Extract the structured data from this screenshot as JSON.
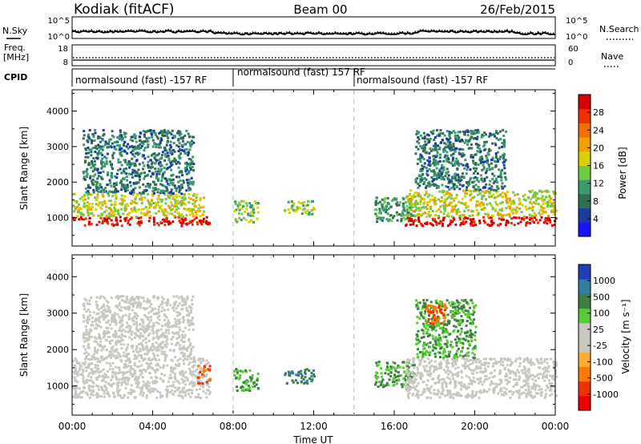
{
  "header": {
    "station": "Kodiak (fitACF)",
    "beam": "Beam 00",
    "date": "26/Feb/2015"
  },
  "summary_panels": {
    "nsky_label": "N.Sky",
    "nsearch_label": "N.Search",
    "noise_ticks": [
      "10^5",
      "10^0"
    ],
    "freq_label": "Freq.",
    "freq_unit": "[MHz]",
    "freq_ticks": [
      "18",
      "8"
    ],
    "nave_label": "Nave",
    "nave_ticks": [
      "60",
      "0"
    ],
    "cpid_label": "CPID"
  },
  "cpid_segments": [
    {
      "label": "normalsound (fast) -157 RF",
      "start_hour": 0
    },
    {
      "label": "normalsound (fast) 157 RF",
      "start_hour": 8
    },
    {
      "label": "normalsound (fast) -157 RF",
      "start_hour": 14
    }
  ],
  "colors": {
    "power_scale": [
      "#1414ff",
      "#1a3ca0",
      "#2f7050",
      "#3a9a70",
      "#6ecb46",
      "#d8d000",
      "#f0a000",
      "#f07000",
      "#f03000",
      "#d80000"
    ],
    "velocity_scale": [
      "#ee0000",
      "#ee3300",
      "#ff7a00",
      "#ffaa33",
      "#c8c8c0",
      "#c8c8c0",
      "#55cc33",
      "#3a8040",
      "#2f7fa0",
      "#1d3ec0"
    ],
    "ground_scatter": "#c8c8c0"
  },
  "chart_data": [
    {
      "type": "heatmap",
      "name": "power",
      "xlabel": "",
      "ylabel": "Slant Range [km]",
      "xlim": [
        0,
        24
      ],
      "ylim": [
        200,
        4600
      ],
      "yticks": [
        1000,
        2000,
        3000,
        4000
      ],
      "colorbar_label": "Power [dB]",
      "colorbar_ticks": [
        "4",
        "8",
        "12",
        "16",
        "20",
        "24",
        "28"
      ],
      "colorbar_range": [
        0,
        30
      ],
      "features": [
        {
          "t": [
            0.0,
            6.8
          ],
          "r": [
            800,
            1050
          ],
          "value": 28
        },
        {
          "t": [
            0.0,
            6.5
          ],
          "r": [
            1050,
            1700
          ],
          "value": 16
        },
        {
          "t": [
            0.5,
            6.0
          ],
          "r": [
            1700,
            3500
          ],
          "value": 8
        },
        {
          "t": [
            8.0,
            9.2
          ],
          "r": [
            900,
            1500
          ],
          "value": 14
        },
        {
          "t": [
            10.5,
            12.0
          ],
          "r": [
            1100,
            1500
          ],
          "value": 14
        },
        {
          "t": [
            15.0,
            17.0
          ],
          "r": [
            900,
            1600
          ],
          "value": 10
        },
        {
          "t": [
            16.5,
            24.0
          ],
          "r": [
            800,
            1050
          ],
          "value": 28
        },
        {
          "t": [
            16.5,
            24.0
          ],
          "r": [
            1050,
            1800
          ],
          "value": 16
        },
        {
          "t": [
            17.0,
            21.5
          ],
          "r": [
            1800,
            3500
          ],
          "value": 8
        }
      ]
    },
    {
      "type": "heatmap",
      "name": "velocity",
      "xlabel": "Time UT",
      "ylabel": "Slant Range [km]",
      "xlim": [
        0,
        24
      ],
      "ylim": [
        200,
        4600
      ],
      "xticks": [
        "00:00",
        "04:00",
        "08:00",
        "12:00",
        "16:00",
        "20:00",
        "00:00"
      ],
      "yticks": [
        1000,
        2000,
        3000,
        4000
      ],
      "colorbar_label": "Velocity [m s⁻¹]",
      "colorbar_ticks": [
        "-1000",
        "-500",
        "-100",
        "-25",
        "25",
        "100",
        "500",
        "1000"
      ],
      "features": [
        {
          "t": [
            0.0,
            6.8
          ],
          "r": [
            700,
            1800
          ],
          "value": 0,
          "ground_scatter": true
        },
        {
          "t": [
            0.5,
            6.0
          ],
          "r": [
            1800,
            3500
          ],
          "value": 0,
          "ground_scatter": true
        },
        {
          "t": [
            6.2,
            6.8
          ],
          "r": [
            1100,
            1600
          ],
          "value": -500
        },
        {
          "t": [
            8.0,
            9.2
          ],
          "r": [
            900,
            1500
          ],
          "value": 100
        },
        {
          "t": [
            10.5,
            12.0
          ],
          "r": [
            1100,
            1500
          ],
          "value": 500
        },
        {
          "t": [
            15.0,
            17.0
          ],
          "r": [
            1000,
            1700
          ],
          "value": 100
        },
        {
          "t": [
            16.5,
            24.0
          ],
          "r": [
            700,
            1800
          ],
          "value": 0,
          "ground_scatter": true
        },
        {
          "t": [
            17.0,
            20.0
          ],
          "r": [
            1800,
            3400
          ],
          "value": 100
        },
        {
          "t": [
            17.5,
            18.5
          ],
          "r": [
            2700,
            3300
          ],
          "value": -500
        }
      ]
    }
  ]
}
